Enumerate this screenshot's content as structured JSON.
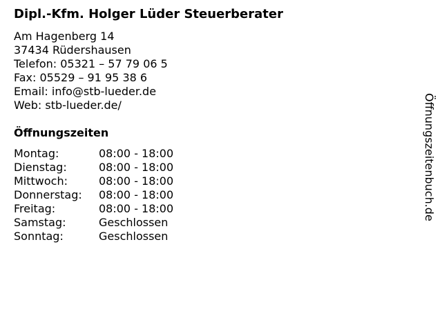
{
  "title": "Dipl.-Kfm. Holger Lüder Steuerberater",
  "address": [
    "Am Hagenberg 14",
    "37434 Rüdershausen",
    "Telefon: 05321 – 57 79 06 5",
    "Fax: 05529 – 91 95 38 6",
    "Email: info@stb-lueder.de",
    "Web: stb-lueder.de/"
  ],
  "hours_heading": "Öffnungszeiten",
  "hours": [
    {
      "day": "Montag:",
      "time": "08:00 - 18:00"
    },
    {
      "day": "Dienstag:",
      "time": "08:00 - 18:00"
    },
    {
      "day": "Mittwoch:",
      "time": "08:00 - 18:00"
    },
    {
      "day": "Donnerstag:",
      "time": "08:00 - 18:00"
    },
    {
      "day": "Freitag:",
      "time": "08:00 - 18:00"
    },
    {
      "day": "Samstag:",
      "time": "Geschlossen"
    },
    {
      "day": "Sonntag:",
      "time": "Geschlossen"
    }
  ],
  "side_label": "Öffnungszeitenbuch.de"
}
